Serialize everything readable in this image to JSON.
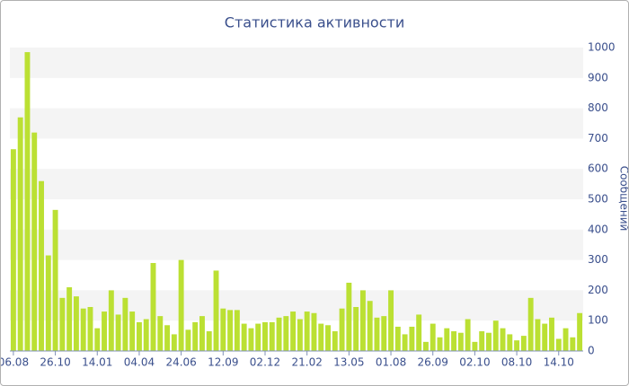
{
  "chart_data": {
    "type": "bar",
    "title": "Статистика активности",
    "y_label": "Сообщений",
    "categories": [
      "06.08",
      null,
      null,
      null,
      null,
      null,
      "26.10",
      null,
      null,
      null,
      null,
      null,
      "14.01",
      null,
      null,
      null,
      null,
      null,
      "04.04",
      null,
      null,
      null,
      null,
      null,
      "24.06",
      null,
      null,
      null,
      null,
      null,
      "12.09",
      null,
      null,
      null,
      null,
      null,
      "02.12",
      null,
      null,
      null,
      null,
      null,
      "21.02",
      null,
      null,
      null,
      null,
      null,
      "13.05",
      null,
      null,
      null,
      null,
      null,
      "01.08",
      null,
      null,
      null,
      null,
      null,
      "26.09",
      null,
      null,
      null,
      null,
      null,
      "02.10",
      null,
      null,
      null,
      null,
      null,
      "08.10",
      null,
      null,
      null,
      null,
      null,
      "14.10",
      null,
      null,
      null
    ],
    "values": [
      665,
      770,
      985,
      720,
      560,
      315,
      465,
      175,
      210,
      180,
      140,
      145,
      75,
      130,
      200,
      120,
      175,
      130,
      95,
      105,
      290,
      115,
      85,
      55,
      300,
      70,
      95,
      115,
      65,
      265,
      140,
      135,
      135,
      90,
      75,
      90,
      95,
      95,
      110,
      115,
      130,
      105,
      130,
      125,
      90,
      85,
      65,
      140,
      225,
      145,
      200,
      165,
      110,
      115,
      200,
      80,
      55,
      80,
      120,
      30,
      90,
      45,
      75,
      65,
      60,
      105,
      30,
      65,
      60,
      100,
      75,
      55,
      35,
      50,
      175,
      105,
      90,
      110,
      40,
      75,
      45,
      125
    ],
    "color": "#bbe033",
    "ylim": [
      0,
      1000
    ],
    "yticks": [
      0,
      100,
      200,
      300,
      400,
      500,
      600,
      700,
      800,
      900,
      1000
    ],
    "grid": true
  }
}
